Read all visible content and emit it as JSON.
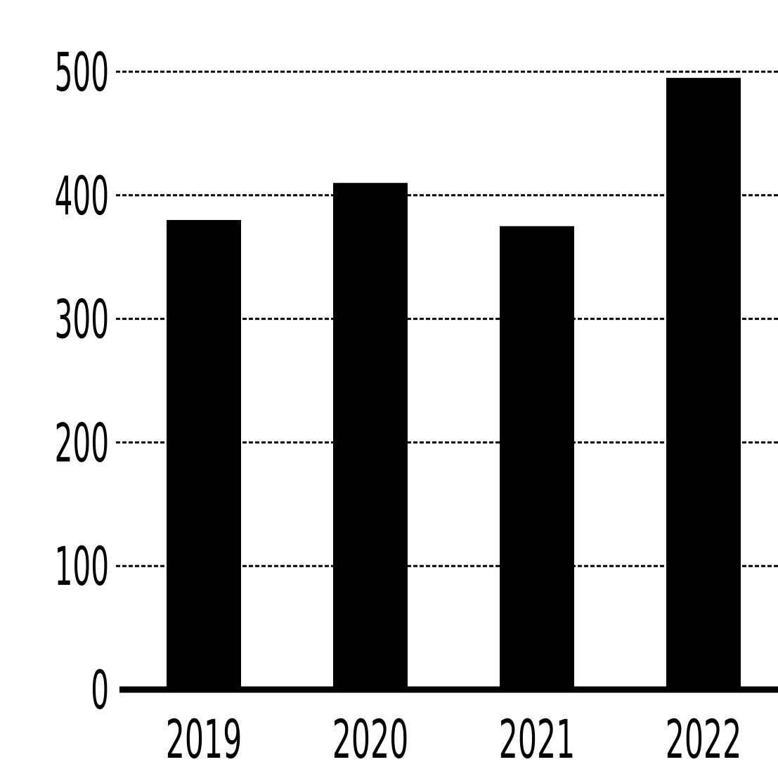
{
  "chart_data": {
    "type": "bar",
    "title": "",
    "xlabel": "",
    "ylabel": "",
    "categories": [
      "2019",
      "2020",
      "2021",
      "2022"
    ],
    "values": [
      380,
      410,
      375,
      495
    ],
    "ylim": [
      0,
      500
    ],
    "yticks": [
      0,
      100,
      200,
      300,
      400,
      500
    ],
    "ytick_labels": [
      "0",
      "100",
      "200",
      "300",
      "400",
      "500"
    ],
    "grid": true,
    "legend": "none",
    "colors": {
      "bar": "#000000",
      "background": "#ffffff",
      "grid": "#000000",
      "text": "#000000"
    }
  }
}
